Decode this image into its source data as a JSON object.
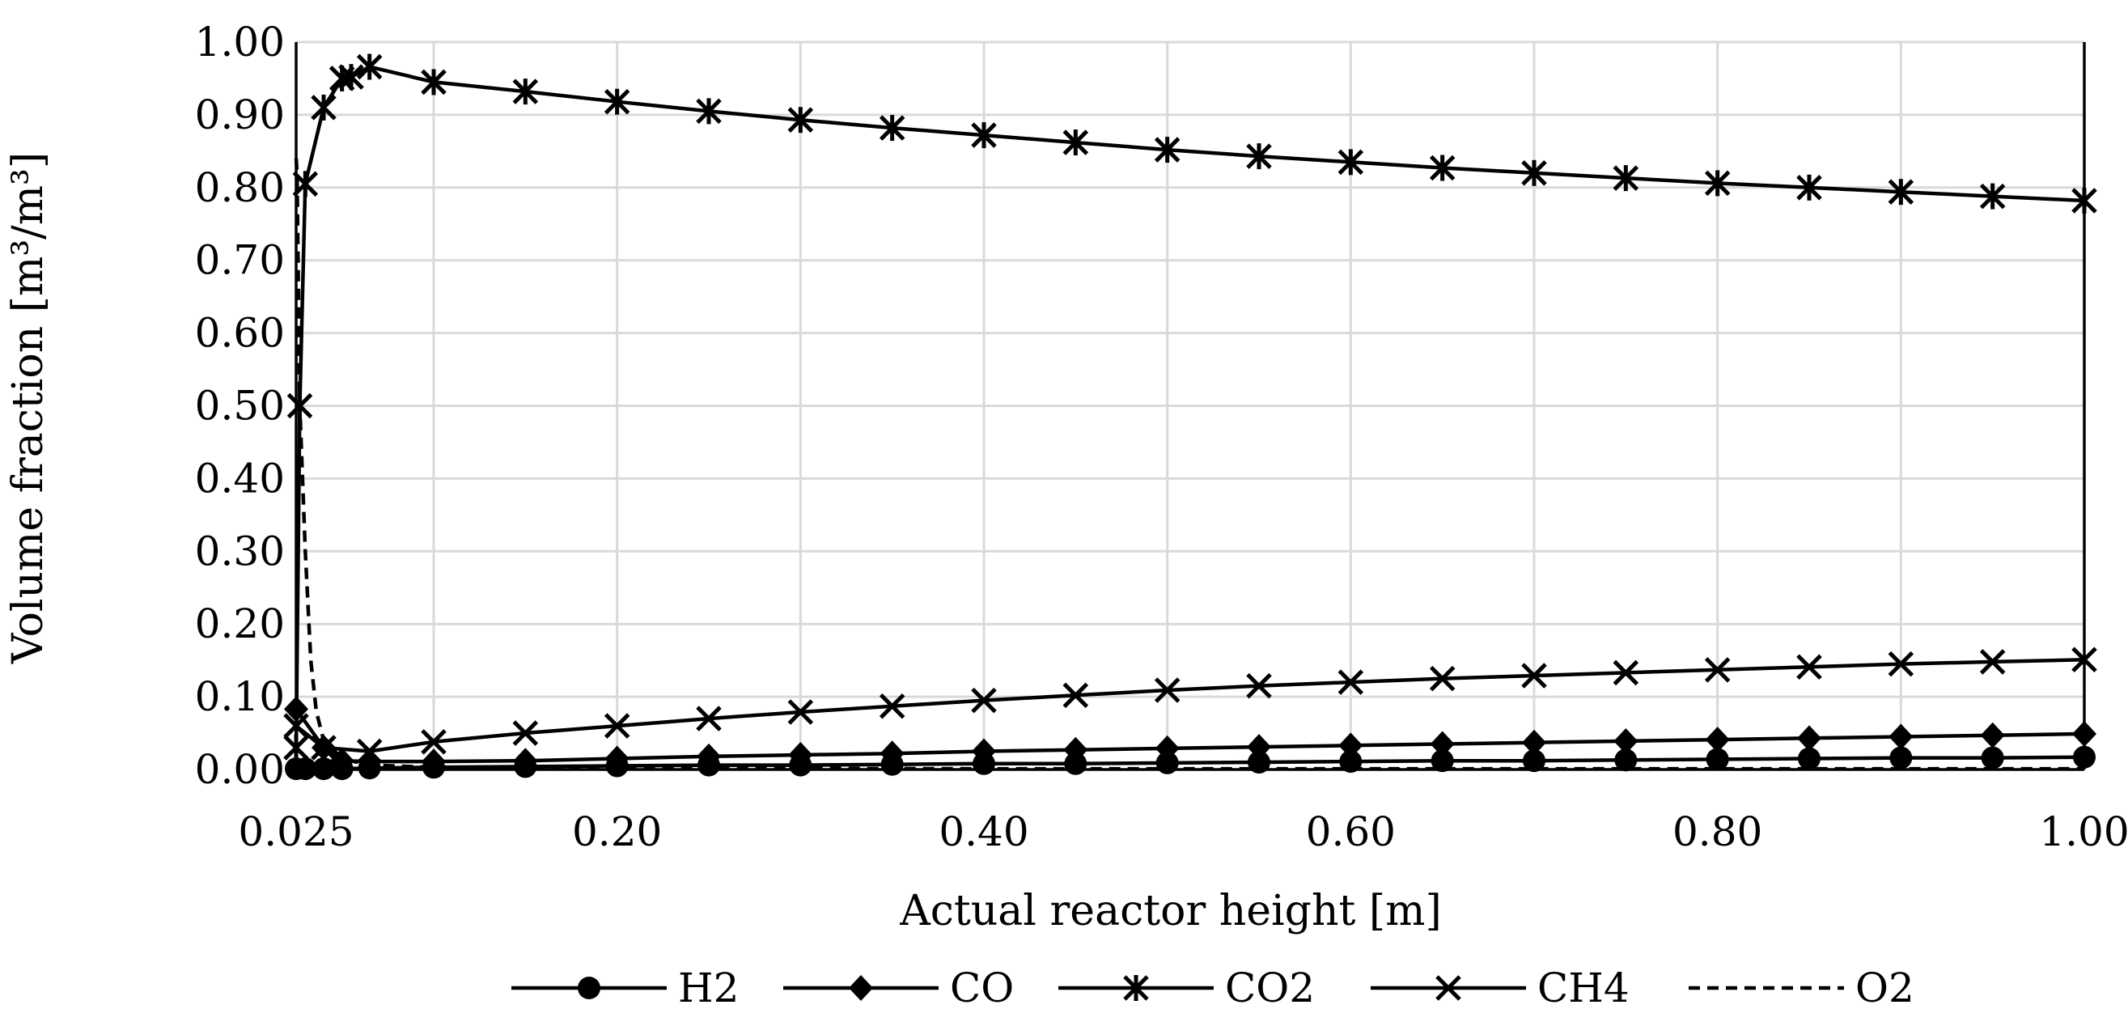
{
  "chart_data": {
    "type": "line",
    "title": "",
    "xlabel": "Actual reactor height [m]",
    "ylabel": "Volume fraction [m³/m³]",
    "xlim": [
      0.025,
      1.0
    ],
    "ylim": [
      0.0,
      1.0
    ],
    "grid": true,
    "legend_position": "bottom",
    "x_ticks": [
      0.025,
      0.1,
      0.2,
      0.3,
      0.4,
      0.5,
      0.6,
      0.7,
      0.8,
      0.9,
      1.0
    ],
    "x_tick_labels": [
      "0.025",
      "",
      "0.20",
      "",
      "0.40",
      "",
      "0.60",
      "",
      "0.80",
      "",
      "1.00"
    ],
    "y_ticks": [
      0,
      0.1,
      0.2,
      0.3,
      0.4,
      0.5,
      0.6,
      0.7,
      0.8,
      0.9,
      1.0
    ],
    "y_tick_labels": [
      "0.00",
      "0.10",
      "0.20",
      "0.30",
      "0.40",
      "0.50",
      "0.60",
      "0.70",
      "0.80",
      "0.90",
      "1.00"
    ],
    "series": [
      {
        "name": "H2",
        "marker": "circle",
        "dash": "solid",
        "x": [
          0.025,
          0.03,
          0.04,
          0.05,
          0.065,
          0.1,
          0.15,
          0.2,
          0.25,
          0.3,
          0.35,
          0.4,
          0.45,
          0.5,
          0.55,
          0.6,
          0.65,
          0.7,
          0.75,
          0.8,
          0.85,
          0.9,
          0.95,
          1.0
        ],
        "y": [
          0.001,
          0.001,
          0.001,
          0.001,
          0.002,
          0.003,
          0.004,
          0.005,
          0.006,
          0.006,
          0.007,
          0.008,
          0.008,
          0.009,
          0.01,
          0.011,
          0.012,
          0.012,
          0.013,
          0.014,
          0.015,
          0.016,
          0.016,
          0.017
        ]
      },
      {
        "name": "CO",
        "marker": "diamond",
        "dash": "solid",
        "x": [
          0.025,
          0.04,
          0.05,
          0.065,
          0.1,
          0.15,
          0.2,
          0.25,
          0.3,
          0.35,
          0.4,
          0.45,
          0.5,
          0.55,
          0.6,
          0.65,
          0.7,
          0.75,
          0.8,
          0.85,
          0.9,
          0.95,
          1.0
        ],
        "y": [
          0.083,
          0.03,
          0.012,
          0.011,
          0.011,
          0.012,
          0.015,
          0.018,
          0.02,
          0.022,
          0.025,
          0.027,
          0.029,
          0.031,
          0.033,
          0.035,
          0.037,
          0.039,
          0.041,
          0.043,
          0.045,
          0.047,
          0.049
        ]
      },
      {
        "name": "CO2",
        "marker": "asterisk",
        "dash": "solid",
        "x": [
          0.025,
          0.027,
          0.03,
          0.04,
          0.05,
          0.055,
          0.065,
          0.1,
          0.15,
          0.2,
          0.25,
          0.3,
          0.35,
          0.4,
          0.45,
          0.5,
          0.55,
          0.6,
          0.65,
          0.7,
          0.75,
          0.8,
          0.85,
          0.9,
          0.95,
          1.0
        ],
        "y": [
          0.03,
          0.5,
          0.805,
          0.91,
          0.95,
          0.952,
          0.966,
          0.945,
          0.932,
          0.918,
          0.905,
          0.893,
          0.882,
          0.872,
          0.862,
          0.852,
          0.843,
          0.835,
          0.827,
          0.82,
          0.813,
          0.806,
          0.8,
          0.794,
          0.788,
          0.782
        ]
      },
      {
        "name": "CH4",
        "marker": "x",
        "dash": "solid",
        "x": [
          0.025,
          0.04,
          0.065,
          0.1,
          0.15,
          0.2,
          0.25,
          0.3,
          0.35,
          0.4,
          0.45,
          0.5,
          0.55,
          0.6,
          0.65,
          0.7,
          0.75,
          0.8,
          0.85,
          0.9,
          0.95,
          1.0
        ],
        "y": [
          0.06,
          0.03,
          0.025,
          0.038,
          0.05,
          0.06,
          0.07,
          0.079,
          0.087,
          0.095,
          0.102,
          0.109,
          0.115,
          0.12,
          0.125,
          0.129,
          0.133,
          0.137,
          0.141,
          0.145,
          0.148,
          0.151
        ]
      },
      {
        "name": "O2",
        "marker": "none",
        "dash": "dashed",
        "x": [
          0.025,
          0.0255,
          0.027,
          0.03,
          0.033,
          0.036,
          0.04,
          0.05,
          0.065,
          0.1,
          0.2,
          0.4,
          0.6,
          0.8,
          1.0
        ],
        "y": [
          0.84,
          0.82,
          0.5,
          0.3,
          0.15,
          0.08,
          0.04,
          0.015,
          0.006,
          0.003,
          0.002,
          0.001,
          0.001,
          0.001,
          0.001
        ]
      }
    ]
  }
}
